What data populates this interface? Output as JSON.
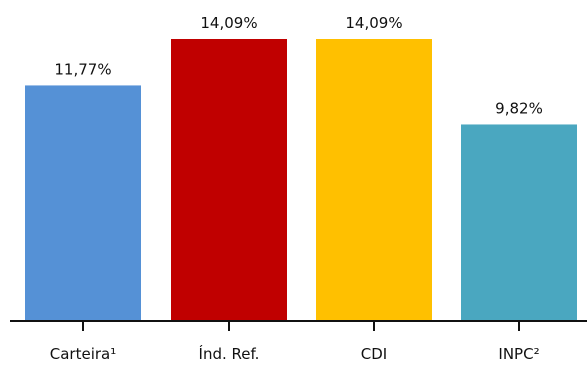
{
  "chart_data": {
    "type": "bar",
    "title": "",
    "xlabel": "",
    "ylabel": "",
    "categories": [
      "Carteira¹",
      "Índ. Ref.",
      "CDI",
      "INPC²"
    ],
    "values": [
      11.77,
      14.09,
      14.09,
      9.82
    ],
    "value_labels": [
      "11,77%",
      "14,09%",
      "14,09%",
      "9,82%"
    ],
    "colors": [
      "#5591d6",
      "#c00000",
      "#ffc000",
      "#4aa7c0"
    ],
    "ylim": [
      0,
      14.09
    ],
    "grid": false,
    "legend": "none"
  }
}
